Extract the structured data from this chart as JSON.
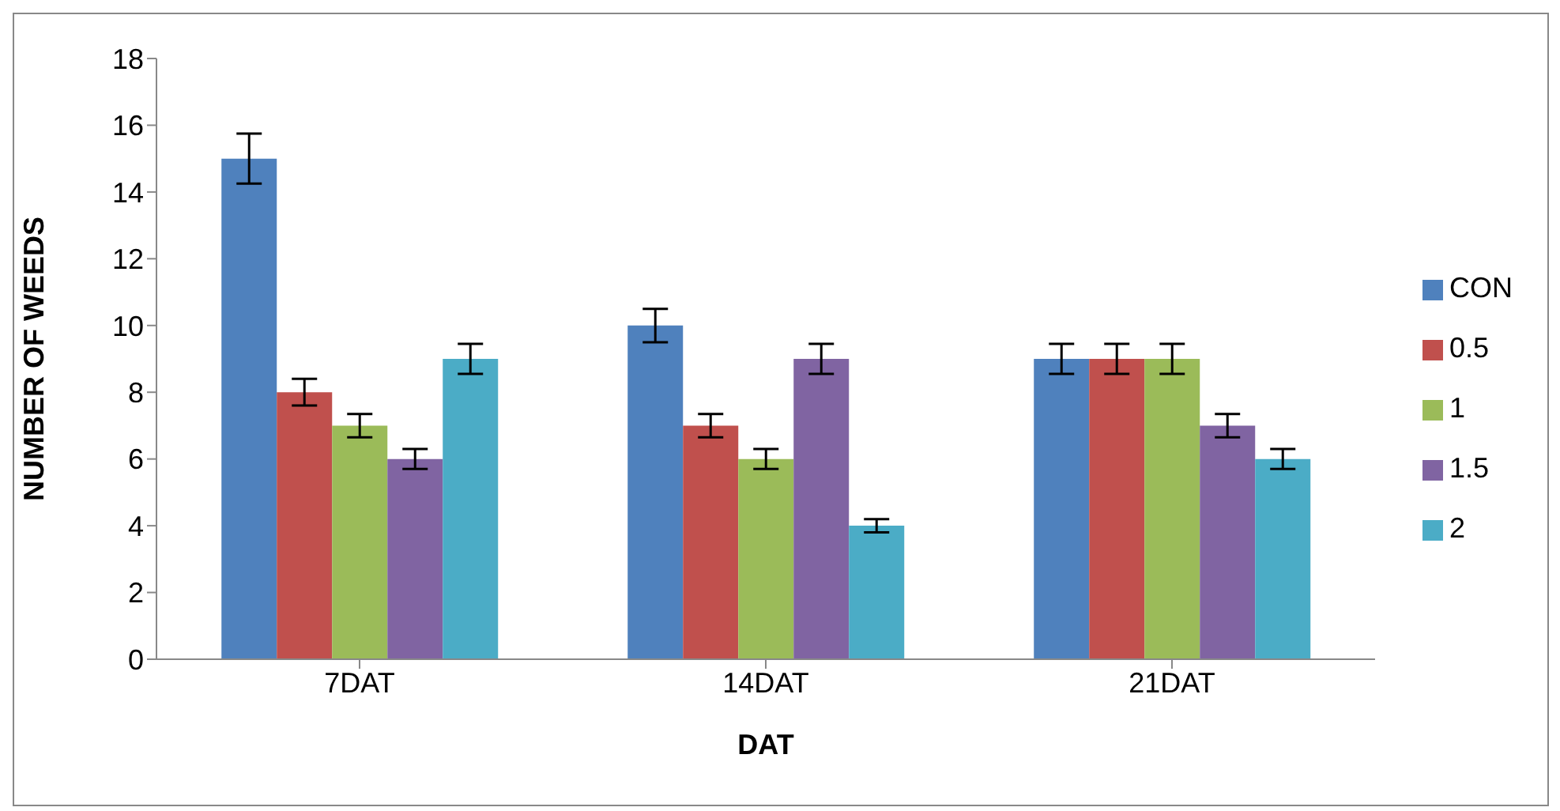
{
  "chart_data": {
    "type": "bar",
    "xlabel": "DAT",
    "ylabel": "NUMBER OF WEEDS",
    "categories": [
      "7DAT",
      "14DAT",
      "21DAT"
    ],
    "series": [
      {
        "name": "CON",
        "color": "#4f81bd",
        "values": [
          15,
          10,
          9
        ],
        "errors": [
          0.75,
          0.5,
          0.45
        ]
      },
      {
        "name": "0.5",
        "color": "#c0504d",
        "values": [
          8,
          7,
          9
        ],
        "errors": [
          0.4,
          0.35,
          0.45
        ]
      },
      {
        "name": "1",
        "color": "#9bbb59",
        "values": [
          7,
          6,
          9
        ],
        "errors": [
          0.35,
          0.3,
          0.45
        ]
      },
      {
        "name": "1.5",
        "color": "#8064a2",
        "values": [
          6,
          9,
          7
        ],
        "errors": [
          0.3,
          0.45,
          0.35
        ]
      },
      {
        "name": "2",
        "color": "#4bacc6",
        "values": [
          9,
          4,
          6
        ],
        "errors": [
          0.45,
          0.2,
          0.3
        ]
      }
    ],
    "ylim": [
      0,
      18
    ],
    "yticks": [
      0,
      2,
      4,
      6,
      8,
      10,
      12,
      14,
      16,
      18
    ],
    "grid": false,
    "legend": "right"
  }
}
